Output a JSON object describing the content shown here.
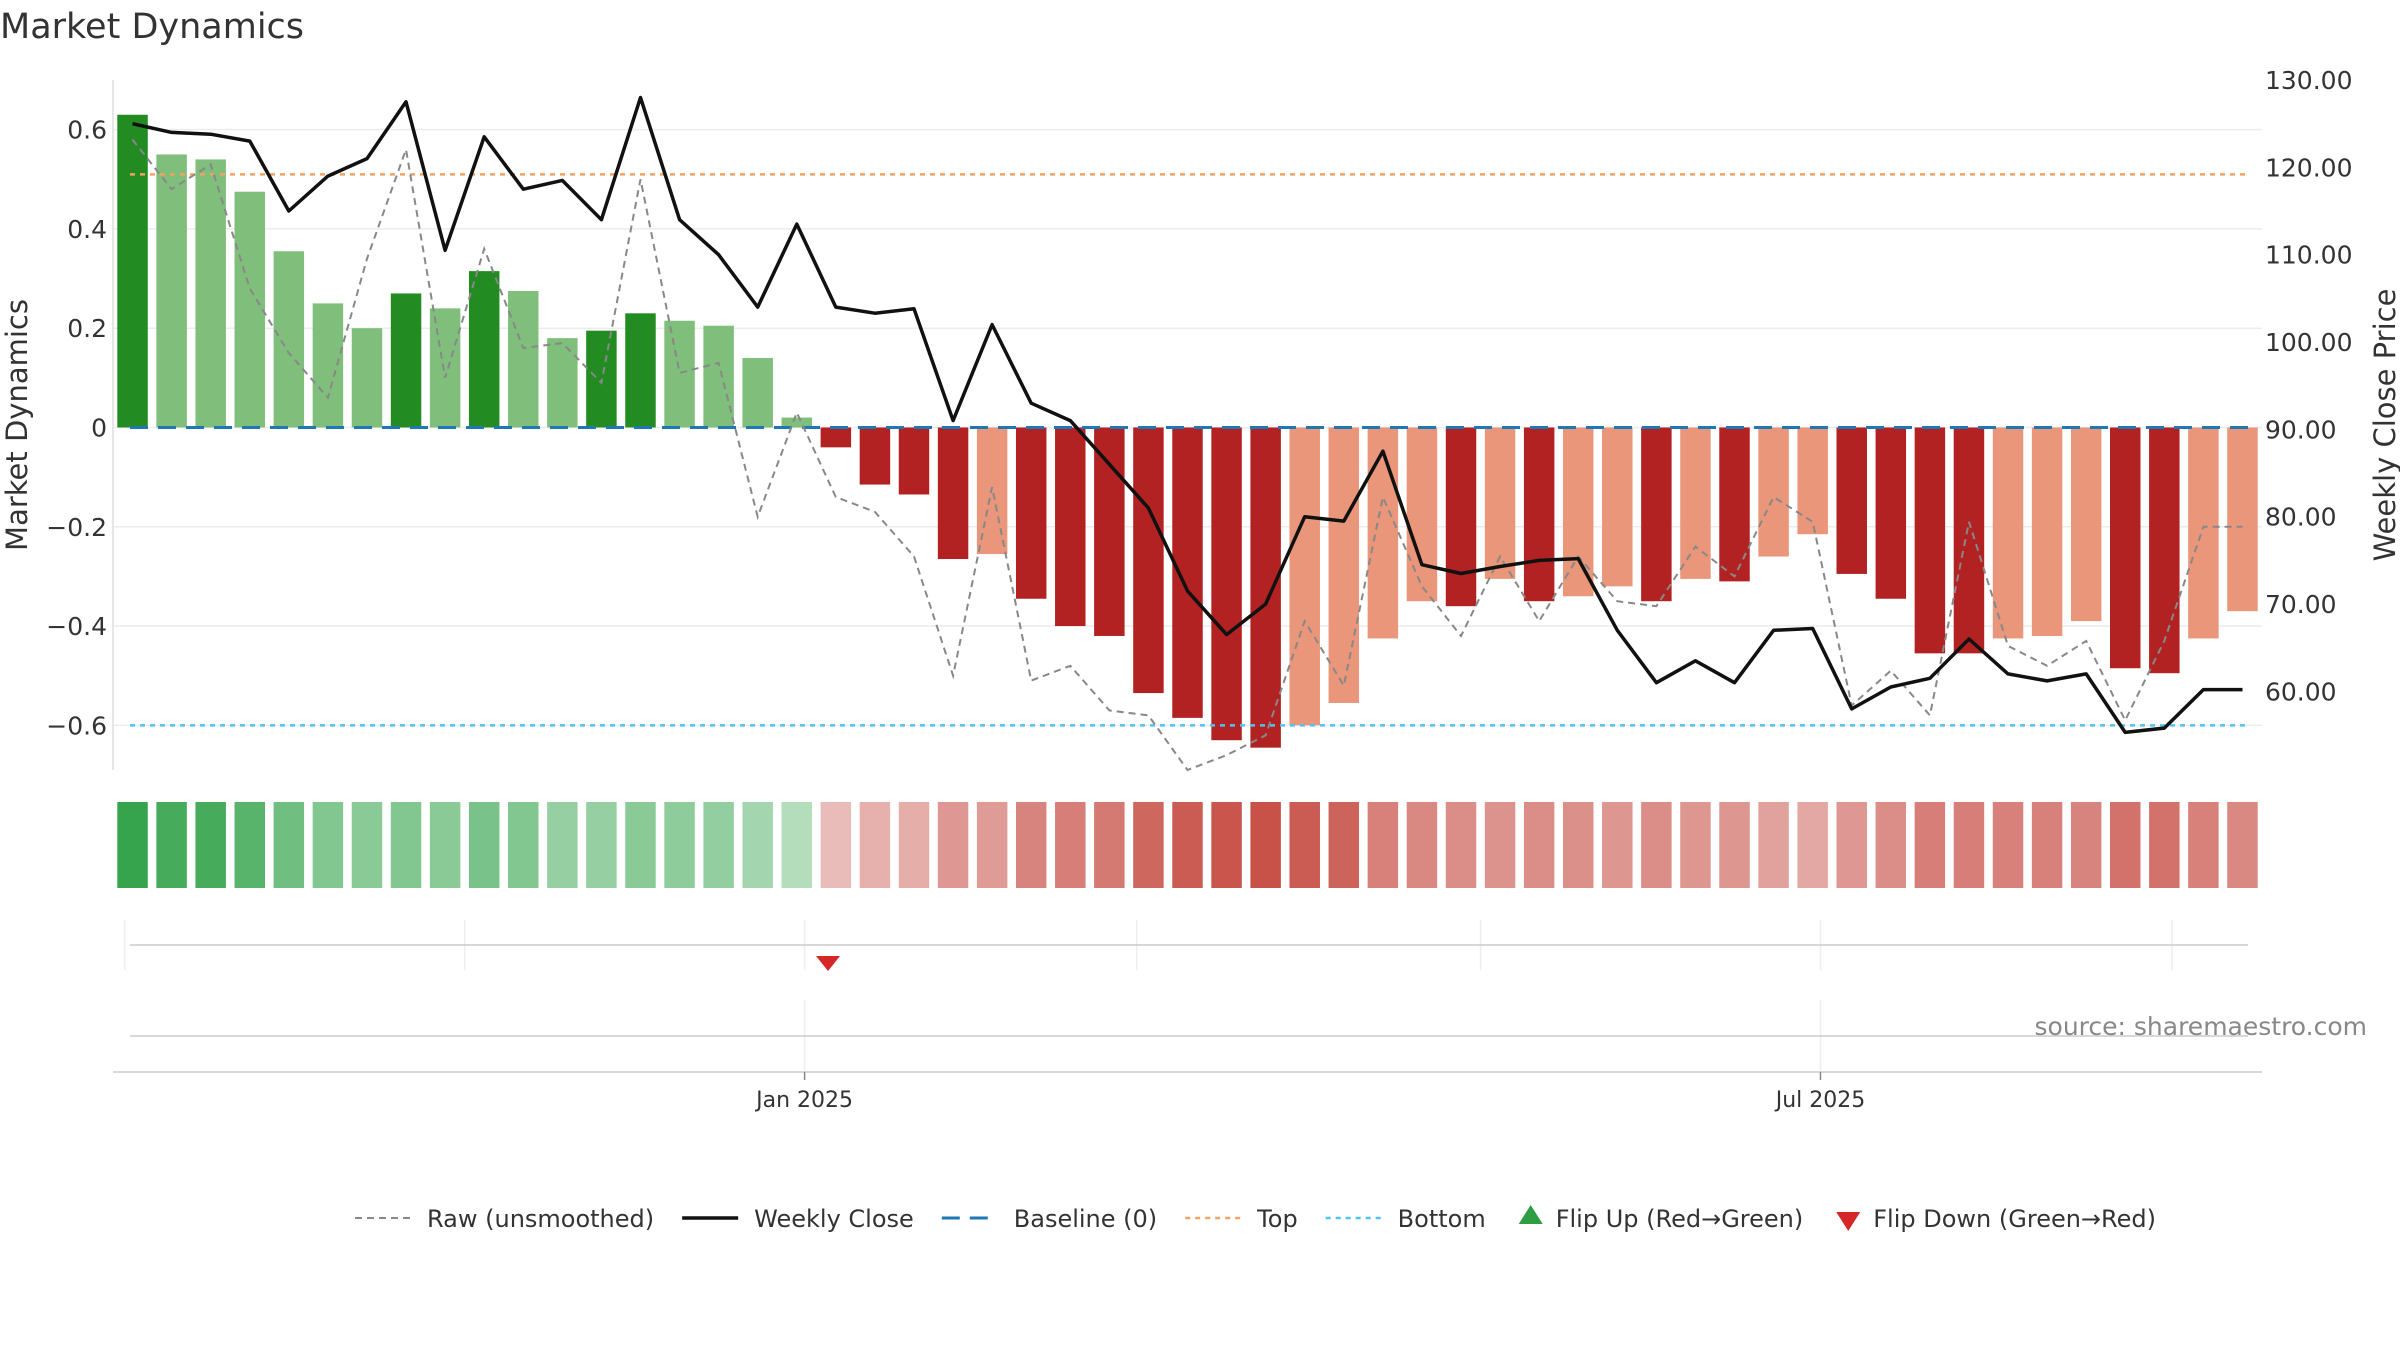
{
  "chart_data": {
    "type": "bar",
    "title": "Market Dynamics",
    "ylabel_left": "Market Dynamics",
    "ylabel_right": "Weekly Close Price",
    "source": "source: sharemaestro.com",
    "ylim_left": [
      -0.69,
      0.7
    ],
    "ylim_right": [
      51,
      130
    ],
    "left_ticks": [
      {
        "v": 0.6,
        "t": "0.6"
      },
      {
        "v": 0.4,
        "t": "0.4"
      },
      {
        "v": 0.2,
        "t": "0.2"
      },
      {
        "v": 0,
        "t": "0"
      },
      {
        "v": -0.2,
        "t": "−0.2"
      },
      {
        "v": -0.4,
        "t": "−0.4"
      },
      {
        "v": -0.6,
        "t": "−0.6"
      }
    ],
    "right_ticks": [
      {
        "v": 130,
        "t": "130.00"
      },
      {
        "v": 120,
        "t": "120.00"
      },
      {
        "v": 110,
        "t": "110.00"
      },
      {
        "v": 100,
        "t": "100.00"
      },
      {
        "v": 90,
        "t": "90.00"
      },
      {
        "v": 80,
        "t": "80.00"
      },
      {
        "v": 70,
        "t": "70.00"
      },
      {
        "v": 60,
        "t": "60.00"
      }
    ],
    "x_ticks": [
      {
        "i": 17.7,
        "t": "Jan 2025"
      },
      {
        "i": 43.7,
        "t": "Jul 2025"
      }
    ],
    "minor_x_gridlines": [
      0.3,
      9.0,
      26.2,
      35.0,
      52.7
    ],
    "top_level": 0.51,
    "bottom_level": -0.6,
    "baseline": 0,
    "bars": [
      0.63,
      0.55,
      0.54,
      0.475,
      0.355,
      0.25,
      0.2,
      0.27,
      0.24,
      0.315,
      0.275,
      0.18,
      0.195,
      0.23,
      0.215,
      0.205,
      0.14,
      0.02,
      -0.04,
      -0.115,
      -0.135,
      -0.265,
      -0.255,
      -0.345,
      -0.4,
      -0.42,
      -0.535,
      -0.585,
      -0.63,
      -0.645,
      -0.6,
      -0.555,
      -0.425,
      -0.35,
      -0.36,
      -0.305,
      -0.35,
      -0.34,
      -0.32,
      -0.35,
      -0.305,
      -0.31,
      -0.26,
      -0.215,
      -0.295,
      -0.345,
      -0.455,
      -0.455,
      -0.425,
      -0.42,
      -0.39,
      -0.485,
      -0.495,
      -0.425,
      -0.37
    ],
    "bar_strength": [
      "strong",
      "weak",
      "weak",
      "weak",
      "weak",
      "weak",
      "weak",
      "strong",
      "weak",
      "strong",
      "weak",
      "weak",
      "strong",
      "strong",
      "weak",
      "weak",
      "weak",
      "weak",
      "strong",
      "strong",
      "strong",
      "strong",
      "weak",
      "strong",
      "strong",
      "strong",
      "strong",
      "strong",
      "strong",
      "strong",
      "weak",
      "weak",
      "weak",
      "weak",
      "strong",
      "weak",
      "strong",
      "weak",
      "weak",
      "strong",
      "weak",
      "strong",
      "weak",
      "weak",
      "strong",
      "strong",
      "strong",
      "strong",
      "weak",
      "weak",
      "weak",
      "strong",
      "strong",
      "weak",
      "weak"
    ],
    "raw": [
      0.58,
      0.48,
      0.53,
      0.28,
      0.15,
      0.06,
      0.34,
      0.56,
      0.1,
      0.36,
      0.16,
      0.17,
      0.09,
      0.5,
      0.11,
      0.13,
      -0.18,
      0.03,
      -0.14,
      -0.17,
      -0.26,
      -0.5,
      -0.12,
      -0.51,
      -0.48,
      -0.57,
      -0.58,
      -0.69,
      -0.66,
      -0.62,
      -0.39,
      -0.52,
      -0.14,
      -0.32,
      -0.42,
      -0.26,
      -0.39,
      -0.26,
      -0.35,
      -0.36,
      -0.24,
      -0.3,
      -0.14,
      -0.19,
      -0.56,
      -0.49,
      -0.58,
      -0.19,
      -0.44,
      -0.48,
      -0.43,
      -0.59,
      -0.43,
      -0.2,
      -0.2
    ],
    "close": [
      125.0,
      124.0,
      123.8,
      123.0,
      115.0,
      119.0,
      121.0,
      127.5,
      110.5,
      123.5,
      117.5,
      118.5,
      114.0,
      128.0,
      114.0,
      110.0,
      104.0,
      113.5,
      104.0,
      103.3,
      103.8,
      91.0,
      102.0,
      93.0,
      91.0,
      86.0,
      81.0,
      71.5,
      66.5,
      70.0,
      80.0,
      79.5,
      87.5,
      74.5,
      73.5,
      74.3,
      75.0,
      75.2,
      67.0,
      61.0,
      63.5,
      61.0,
      67.0,
      67.2,
      58.0,
      60.5,
      61.5,
      66.0,
      62.0,
      61.2,
      62.0,
      55.3,
      55.8,
      60.2,
      60.2
    ],
    "strip": [
      0.95,
      0.85,
      0.85,
      0.75,
      0.6,
      0.5,
      0.45,
      0.5,
      0.45,
      0.55,
      0.5,
      0.38,
      0.38,
      0.45,
      0.42,
      0.4,
      0.3,
      0.2,
      0.2,
      0.28,
      0.3,
      0.45,
      0.42,
      0.58,
      0.62,
      0.65,
      0.78,
      0.85,
      0.9,
      0.92,
      0.85,
      0.8,
      0.6,
      0.55,
      0.52,
      0.48,
      0.52,
      0.5,
      0.46,
      0.52,
      0.46,
      0.46,
      0.38,
      0.34,
      0.45,
      0.52,
      0.62,
      0.62,
      0.6,
      0.6,
      0.58,
      0.7,
      0.7,
      0.6,
      0.55
    ],
    "flip_down_index": 18.3,
    "colors": {
      "strong_green": "#228b22",
      "weak_green": "#7fbf7b",
      "strong_red": "#b22222",
      "weak_red": "#e9967a",
      "raw": "#888888",
      "close": "#111111",
      "baseline": "#1f77b4",
      "top": "#f4a261",
      "bottom": "#4fc3f7",
      "flip_up": "#2e9e44",
      "flip_down": "#d62728"
    },
    "legend": [
      {
        "key": "raw",
        "label": "Raw (unsmoothed)"
      },
      {
        "key": "close",
        "label": "Weekly Close"
      },
      {
        "key": "baseline",
        "label": "Baseline (0)"
      },
      {
        "key": "top",
        "label": "Top"
      },
      {
        "key": "bottom",
        "label": "Bottom"
      },
      {
        "key": "flip_up",
        "label": "Flip Up (Red→Green)"
      },
      {
        "key": "flip_down",
        "label": "Flip Down (Green→Red)"
      }
    ]
  }
}
